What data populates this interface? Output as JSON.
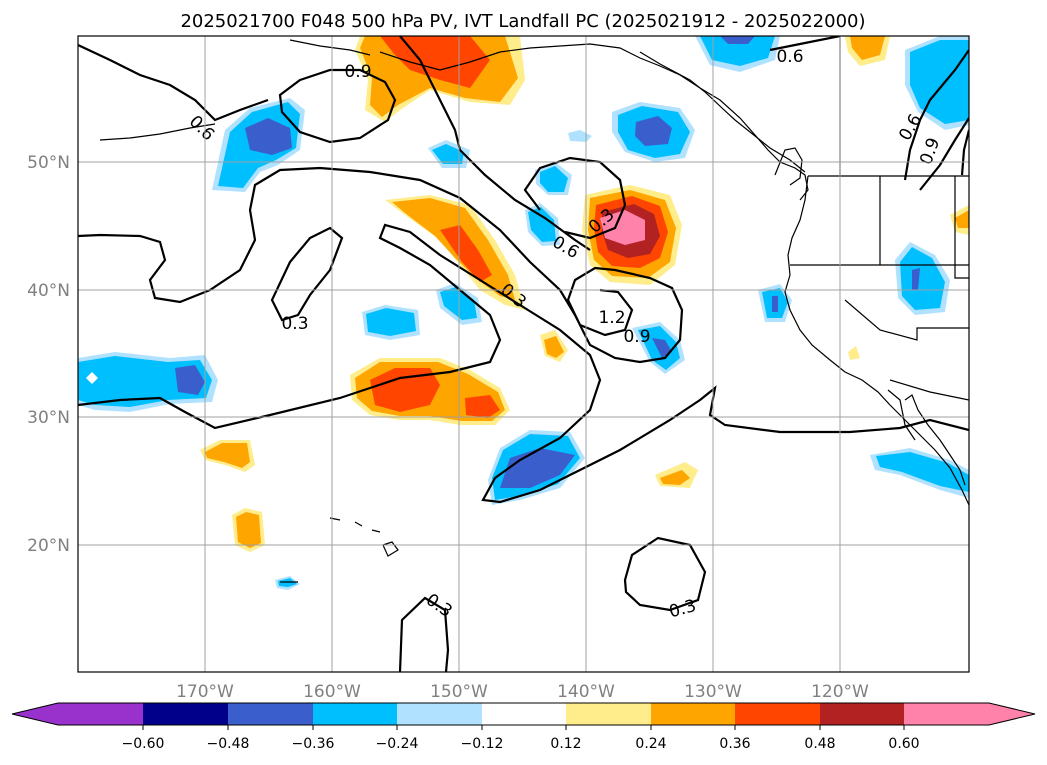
{
  "title": "2025021700 F048 500 hPa PV, IVT Landfall PC (2025021912 - 2025022000)",
  "axes": {
    "lat_labels": [
      "50°N",
      "40°N",
      "30°N",
      "20°N"
    ],
    "lon_labels": [
      "170°W",
      "160°W",
      "150°W",
      "140°W",
      "130°W",
      "120°W"
    ]
  },
  "contour_labels": [
    "0.6",
    "0.9",
    "0.6",
    "0.6",
    "0.9",
    "0.3",
    "0.6",
    "0.3",
    "1.2",
    "0.9",
    "0.3",
    "0.3",
    "0.3"
  ],
  "colorbar": {
    "ticks": [
      "−0.60",
      "−0.48",
      "−0.36",
      "−0.24",
      "−0.12",
      "0.12",
      "0.24",
      "0.36",
      "0.48",
      "0.60"
    ],
    "colors": [
      "#9932cc",
      "#00008b",
      "#3a5fcd",
      "#00bfff",
      "#b0e2ff",
      "#ffffff",
      "#ffec8b",
      "#ffa500",
      "#ff4500",
      "#b22222",
      "#ff82ab"
    ]
  },
  "colors": {
    "shade_blue_light": "#b0e2ff",
    "shade_blue": "#00bfff",
    "shade_blue_dark": "#3a5fcd",
    "shade_yellow": "#ffec8b",
    "shade_orange": "#ffa500",
    "shade_redorange": "#ff4500",
    "shade_red": "#b22222",
    "shade_pink": "#ff82ab"
  }
}
